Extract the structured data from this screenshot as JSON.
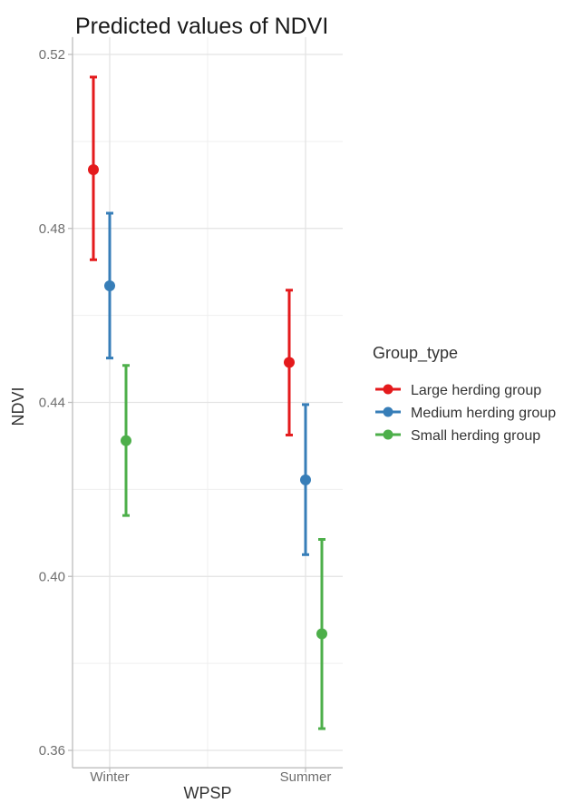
{
  "chart_data": {
    "type": "scatter",
    "title": "Predicted values of NDVI",
    "xlabel": "WPSP",
    "ylabel": "NDVI",
    "categories": [
      "Winter",
      "Summer"
    ],
    "ylim": [
      0.356,
      0.524
    ],
    "yticks": [
      "0.36",
      "0.40",
      "0.44",
      "0.48",
      "0.52"
    ],
    "grid": true,
    "legend": {
      "title": "Group_type",
      "position": "right"
    },
    "series": [
      {
        "name": "Large herding group",
        "color": "#e41a1c",
        "values": [
          0.4935,
          0.4492
        ],
        "lower": [
          0.4728,
          0.4325
        ],
        "upper": [
          0.5148,
          0.4658
        ]
      },
      {
        "name": "Medium herding group",
        "color": "#377eb8",
        "values": [
          0.4668,
          0.4222
        ],
        "lower": [
          0.4502,
          0.405
        ],
        "upper": [
          0.4835,
          0.4395
        ]
      },
      {
        "name": "Small herding group",
        "color": "#4daf4a",
        "values": [
          0.4312,
          0.3868
        ],
        "lower": [
          0.414,
          0.365
        ],
        "upper": [
          0.4485,
          0.4085
        ]
      }
    ]
  }
}
